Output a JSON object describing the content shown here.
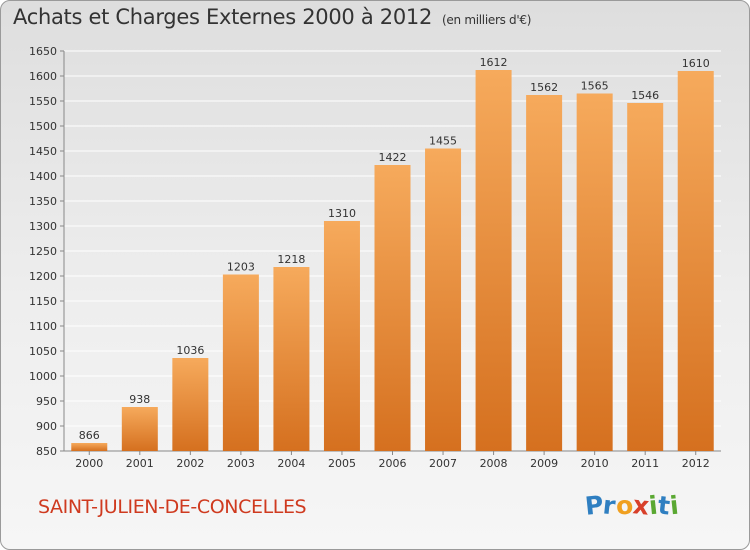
{
  "title": "Achats et Charges Externes 2000 à 2012",
  "unit": "(en milliers d'€)",
  "commune": "SAINT-JULIEN-DE-CONCELLES",
  "logo": {
    "text": "Proxiti",
    "letters": [
      {
        "char": "P",
        "color": "#2f7fc1"
      },
      {
        "char": "r",
        "color": "#2f7fc1"
      },
      {
        "char": "o",
        "color": "#f0a020"
      },
      {
        "char": "x",
        "color": "#d8402a"
      },
      {
        "char": "i",
        "color": "#5aa832"
      },
      {
        "char": "t",
        "color": "#2f7fc1"
      },
      {
        "char": "i",
        "color": "#5aa832"
      }
    ]
  },
  "colors": {
    "bar_top": "#f6aa5c",
    "bar_bottom": "#d5701f",
    "grid": "#ffffff",
    "axis": "#333333"
  },
  "chart_data": {
    "type": "bar",
    "categories": [
      "2000",
      "2001",
      "2002",
      "2003",
      "2004",
      "2005",
      "2006",
      "2007",
      "2008",
      "2009",
      "2010",
      "2011",
      "2012"
    ],
    "values": [
      866,
      938,
      1036,
      1203,
      1218,
      1310,
      1422,
      1455,
      1612,
      1562,
      1565,
      1546,
      1610
    ],
    "ylim": [
      850,
      1650
    ],
    "yticks": [
      850,
      900,
      950,
      1000,
      1050,
      1100,
      1150,
      1200,
      1250,
      1300,
      1350,
      1400,
      1450,
      1500,
      1550,
      1600,
      1650
    ],
    "grid": true,
    "data_labels": true
  }
}
